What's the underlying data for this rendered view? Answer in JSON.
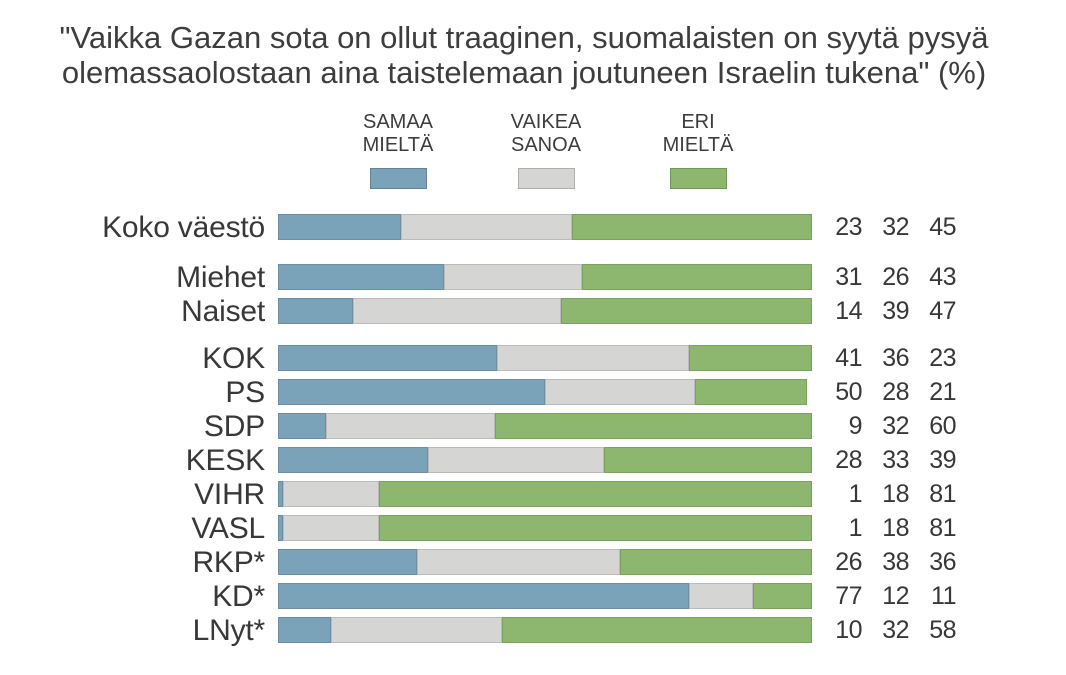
{
  "title": {
    "line1": "\"Vaikka Gazan sota on ollut traaginen, suomalaisten on syytä pysyä",
    "line2": "olemassaolostaan aina taistelemaan joutuneen Israelin tukena\" (%)"
  },
  "legend": {
    "items": [
      {
        "label_line1": "SAMAA",
        "label_line2": "MIELTÄ",
        "color": "#7AA2B8"
      },
      {
        "label_line1": "VAIKEA",
        "label_line2": "SANOA",
        "color": "#D5D5D4"
      },
      {
        "label_line1": "ERI",
        "label_line2": "MIELTÄ",
        "color": "#8DB76E"
      }
    ]
  },
  "colors": {
    "agree": "#7AA2B8",
    "hard_to_say": "#D5D5D4",
    "disagree": "#8DB76E",
    "text": "#3D3D3D",
    "background": "#FFFFFF"
  },
  "chart_data": {
    "type": "bar",
    "orientation": "horizontal",
    "stacked": true,
    "title": "\"Vaikka Gazan sota on ollut traaginen, suomalaisten on syytä pysyä olemassaolostaan aina taistelemaan joutuneen Israelin tukena\" (%)",
    "xlabel": "",
    "ylabel": "",
    "xlim": [
      0,
      100
    ],
    "grid": false,
    "legend_position": "top",
    "value_labels": "right",
    "categories": [
      "Koko väestö",
      "Miehet",
      "Naiset",
      "KOK",
      "PS",
      "SDP",
      "KESK",
      "VIHR",
      "VASL",
      "RKP*",
      "KD*",
      "LNyt*"
    ],
    "category_groups": [
      [
        "Koko väestö"
      ],
      [
        "Miehet",
        "Naiset"
      ],
      [
        "KOK",
        "PS",
        "SDP",
        "KESK",
        "VIHR",
        "VASL",
        "RKP*",
        "KD*",
        "LNyt*"
      ]
    ],
    "series": [
      {
        "name": "SAMAA MIELTÄ",
        "color": "#7AA2B8",
        "values": [
          23,
          31,
          14,
          41,
          50,
          9,
          28,
          1,
          1,
          26,
          77,
          10
        ]
      },
      {
        "name": "VAIKEA SANOA",
        "color": "#D5D5D4",
        "values": [
          32,
          26,
          39,
          36,
          28,
          32,
          33,
          18,
          18,
          38,
          12,
          32
        ]
      },
      {
        "name": "ERI MIELTÄ",
        "color": "#8DB76E",
        "values": [
          45,
          43,
          47,
          23,
          21,
          60,
          39,
          81,
          81,
          36,
          11,
          58
        ]
      }
    ]
  }
}
